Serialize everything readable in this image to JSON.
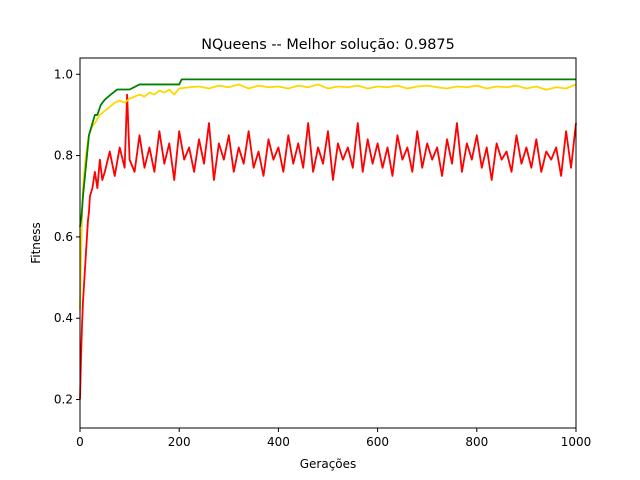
{
  "chart_data": {
    "type": "line",
    "title": "NQueens -- Melhor solução: 0.9875",
    "xlabel": "Gerações",
    "ylabel": "Fitness",
    "xlim": [
      0,
      1000
    ],
    "ylim": [
      0.13,
      1.04
    ],
    "xticks": [
      "0",
      "200",
      "400",
      "600",
      "800",
      "1000"
    ],
    "yticks": [
      "0.2",
      "0.4",
      "0.6",
      "0.8",
      "1.0"
    ],
    "grid": false,
    "legend": "none",
    "series": [
      {
        "color": "#008000",
        "x": [
          0,
          3,
          6,
          10,
          14,
          18,
          24,
          30,
          35,
          42,
          50,
          62,
          75,
          90,
          100,
          120,
          130,
          160,
          190,
          200,
          205,
          260,
          300,
          320,
          1000
        ],
        "y": [
          0.625,
          0.65,
          0.7,
          0.75,
          0.8,
          0.85,
          0.875,
          0.9,
          0.9,
          0.925,
          0.9375,
          0.95,
          0.9625,
          0.9625,
          0.9625,
          0.975,
          0.975,
          0.975,
          0.975,
          0.975,
          0.9875,
          0.9875,
          0.9875,
          0.9875,
          0.9875
        ]
      },
      {
        "color": "#ffd700",
        "x": [
          0,
          3,
          6,
          10,
          14,
          18,
          24,
          30,
          40,
          50,
          60,
          70,
          80,
          90,
          100,
          110,
          120,
          130,
          140,
          150,
          160,
          170,
          180,
          190,
          200,
          220,
          240,
          260,
          280,
          300,
          320,
          340,
          360,
          380,
          400,
          420,
          440,
          460,
          480,
          500,
          520,
          540,
          560,
          580,
          600,
          620,
          640,
          660,
          680,
          700,
          720,
          740,
          760,
          780,
          800,
          820,
          840,
          860,
          880,
          900,
          920,
          940,
          960,
          980,
          1000
        ],
        "y": [
          0.42,
          0.6,
          0.72,
          0.78,
          0.82,
          0.85,
          0.87,
          0.88,
          0.9,
          0.91,
          0.92,
          0.93,
          0.935,
          0.93,
          0.94,
          0.945,
          0.95,
          0.945,
          0.955,
          0.95,
          0.96,
          0.955,
          0.962,
          0.95,
          0.965,
          0.968,
          0.97,
          0.965,
          0.972,
          0.968,
          0.975,
          0.965,
          0.972,
          0.968,
          0.97,
          0.965,
          0.972,
          0.968,
          0.975,
          0.965,
          0.97,
          0.968,
          0.972,
          0.965,
          0.97,
          0.968,
          0.972,
          0.965,
          0.97,
          0.972,
          0.968,
          0.965,
          0.97,
          0.968,
          0.972,
          0.965,
          0.97,
          0.968,
          0.972,
          0.965,
          0.97,
          0.962,
          0.968,
          0.965,
          0.975
        ]
      },
      {
        "color": "#ff0000",
        "x": [
          0,
          2,
          4,
          6,
          8,
          10,
          12,
          14,
          16,
          18,
          20,
          25,
          30,
          35,
          40,
          45,
          50,
          60,
          70,
          80,
          90,
          95,
          100,
          110,
          120,
          130,
          140,
          150,
          160,
          170,
          180,
          190,
          200,
          210,
          220,
          230,
          240,
          250,
          260,
          270,
          280,
          290,
          300,
          310,
          320,
          330,
          340,
          350,
          360,
          370,
          380,
          390,
          400,
          410,
          420,
          430,
          440,
          450,
          460,
          470,
          480,
          490,
          500,
          510,
          520,
          530,
          540,
          550,
          560,
          570,
          580,
          590,
          600,
          610,
          620,
          630,
          640,
          650,
          660,
          670,
          680,
          690,
          700,
          710,
          720,
          730,
          740,
          750,
          760,
          770,
          780,
          790,
          800,
          810,
          820,
          830,
          840,
          850,
          860,
          870,
          880,
          890,
          900,
          910,
          920,
          930,
          940,
          950,
          960,
          970,
          980,
          990,
          1000
        ],
        "y": [
          0.2,
          0.3,
          0.38,
          0.44,
          0.48,
          0.52,
          0.56,
          0.6,
          0.64,
          0.66,
          0.7,
          0.72,
          0.76,
          0.72,
          0.79,
          0.74,
          0.76,
          0.81,
          0.75,
          0.82,
          0.77,
          0.95,
          0.79,
          0.76,
          0.85,
          0.77,
          0.82,
          0.76,
          0.86,
          0.78,
          0.83,
          0.74,
          0.86,
          0.79,
          0.82,
          0.76,
          0.84,
          0.78,
          0.88,
          0.74,
          0.83,
          0.79,
          0.85,
          0.76,
          0.82,
          0.78,
          0.86,
          0.77,
          0.81,
          0.75,
          0.84,
          0.79,
          0.82,
          0.76,
          0.85,
          0.78,
          0.83,
          0.77,
          0.88,
          0.76,
          0.82,
          0.78,
          0.86,
          0.74,
          0.83,
          0.79,
          0.82,
          0.77,
          0.88,
          0.76,
          0.84,
          0.78,
          0.83,
          0.77,
          0.82,
          0.75,
          0.85,
          0.79,
          0.82,
          0.76,
          0.86,
          0.77,
          0.83,
          0.79,
          0.82,
          0.75,
          0.84,
          0.78,
          0.88,
          0.76,
          0.83,
          0.79,
          0.85,
          0.77,
          0.82,
          0.74,
          0.83,
          0.79,
          0.81,
          0.76,
          0.85,
          0.78,
          0.82,
          0.77,
          0.84,
          0.76,
          0.81,
          0.79,
          0.82,
          0.75,
          0.86,
          0.77,
          0.88
        ]
      }
    ]
  }
}
